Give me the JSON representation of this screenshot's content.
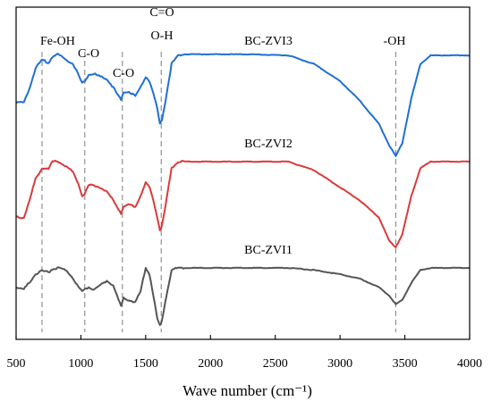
{
  "chart_data": {
    "type": "line",
    "title": "",
    "xlabel": "Wave number (cm⁻¹)",
    "ylabel": "",
    "xlim": [
      500,
      4000
    ],
    "xticks": [
      "500",
      "1000",
      "1500",
      "2000",
      "2500",
      "3000",
      "3500",
      "4000"
    ],
    "grid": false,
    "legend": "none",
    "series": [
      {
        "name": "BC-ZVI3",
        "color": "#1f6fd6",
        "x": [
          500,
          560,
          600,
          650,
          700,
          750,
          780,
          820,
          860,
          900,
          940,
          980,
          1010,
          1030,
          1060,
          1100,
          1150,
          1200,
          1250,
          1290,
          1310,
          1330,
          1370,
          1420,
          1460,
          1500,
          1530,
          1560,
          1590,
          1610,
          1625,
          1650,
          1700,
          1750,
          1800,
          2000,
          2300,
          2600,
          2800,
          3000,
          3150,
          3300,
          3380,
          3430,
          3480,
          3550,
          3620,
          3700,
          3800,
          4000
        ],
        "values": [
          -2.2,
          -2.2,
          -1.6,
          -0.6,
          -0.2,
          -0.35,
          -0.05,
          0.05,
          -0.1,
          -0.25,
          -0.4,
          -0.9,
          -1.3,
          -1.2,
          -0.9,
          -0.85,
          -1.0,
          -1.1,
          -1.5,
          -1.9,
          -2.1,
          -1.7,
          -1.7,
          -1.9,
          -1.5,
          -1.0,
          -1.2,
          -1.8,
          -2.5,
          -3.2,
          -3.0,
          -2.2,
          -0.4,
          0.0,
          0.05,
          0.05,
          0.05,
          0.0,
          -0.4,
          -1.2,
          -2.1,
          -3.2,
          -4.2,
          -4.7,
          -4.1,
          -2.0,
          -0.4,
          0.0,
          0.0,
          0.0
        ]
      },
      {
        "name": "BC-ZVI2",
        "color": "#d93b3b",
        "x": [
          500,
          560,
          600,
          650,
          700,
          750,
          780,
          820,
          860,
          900,
          940,
          980,
          1010,
          1030,
          1060,
          1100,
          1150,
          1200,
          1250,
          1290,
          1310,
          1330,
          1370,
          1420,
          1460,
          1500,
          1530,
          1560,
          1590,
          1610,
          1625,
          1650,
          1700,
          1750,
          1800,
          2000,
          2300,
          2600,
          2800,
          3000,
          3150,
          3300,
          3380,
          3430,
          3480,
          3550,
          3620,
          3700,
          3800,
          4000
        ],
        "values": [
          -2.6,
          -2.6,
          -1.9,
          -0.8,
          -0.3,
          -0.35,
          0.0,
          0.0,
          -0.1,
          -0.3,
          -0.5,
          -1.0,
          -1.6,
          -1.5,
          -1.1,
          -1.1,
          -1.2,
          -1.4,
          -1.8,
          -2.2,
          -2.4,
          -2.1,
          -2.0,
          -2.1,
          -1.6,
          -1.0,
          -1.2,
          -1.8,
          -2.6,
          -3.2,
          -3.0,
          -2.2,
          -0.3,
          0.0,
          0.0,
          0.0,
          0.0,
          0.0,
          -0.4,
          -1.2,
          -1.8,
          -2.6,
          -3.7,
          -4.0,
          -3.4,
          -1.6,
          -0.3,
          0.0,
          0.0,
          0.0
        ]
      },
      {
        "name": "BC-ZVI1",
        "color": "#555555",
        "x": [
          500,
          560,
          600,
          650,
          700,
          750,
          780,
          820,
          860,
          900,
          940,
          980,
          1010,
          1030,
          1060,
          1100,
          1150,
          1200,
          1250,
          1290,
          1310,
          1330,
          1370,
          1420,
          1460,
          1500,
          1530,
          1560,
          1590,
          1610,
          1625,
          1650,
          1700,
          1750,
          1800,
          2000,
          2300,
          2600,
          2800,
          3000,
          3150,
          3300,
          3380,
          3430,
          3480,
          3550,
          3620,
          3700,
          3800,
          4000
        ],
        "values": [
          -0.9,
          -1.0,
          -0.7,
          -0.3,
          -0.15,
          -0.2,
          -0.05,
          0.0,
          -0.05,
          -0.2,
          -0.5,
          -0.9,
          -1.1,
          -1.0,
          -0.9,
          -1.0,
          -0.8,
          -0.6,
          -0.8,
          -1.5,
          -1.8,
          -1.4,
          -1.5,
          -1.6,
          -1.1,
          0.0,
          -0.3,
          -1.3,
          -2.4,
          -2.7,
          -2.5,
          -1.6,
          -0.1,
          0.0,
          0.0,
          0.0,
          0.0,
          0.0,
          -0.1,
          -0.3,
          -0.5,
          -0.9,
          -1.3,
          -1.7,
          -1.5,
          -0.7,
          -0.1,
          0.0,
          0.0,
          0.0
        ]
      }
    ],
    "annotations": [
      {
        "text": "Fe-OH",
        "x": 700
      },
      {
        "text": "C-O",
        "x": 1030
      },
      {
        "text": "C-O",
        "x": 1320
      },
      {
        "text": "C=O",
        "x": 1620
      },
      {
        "text": "O-H",
        "x": 1620
      },
      {
        "text": "-OH",
        "x": 3430
      }
    ]
  }
}
